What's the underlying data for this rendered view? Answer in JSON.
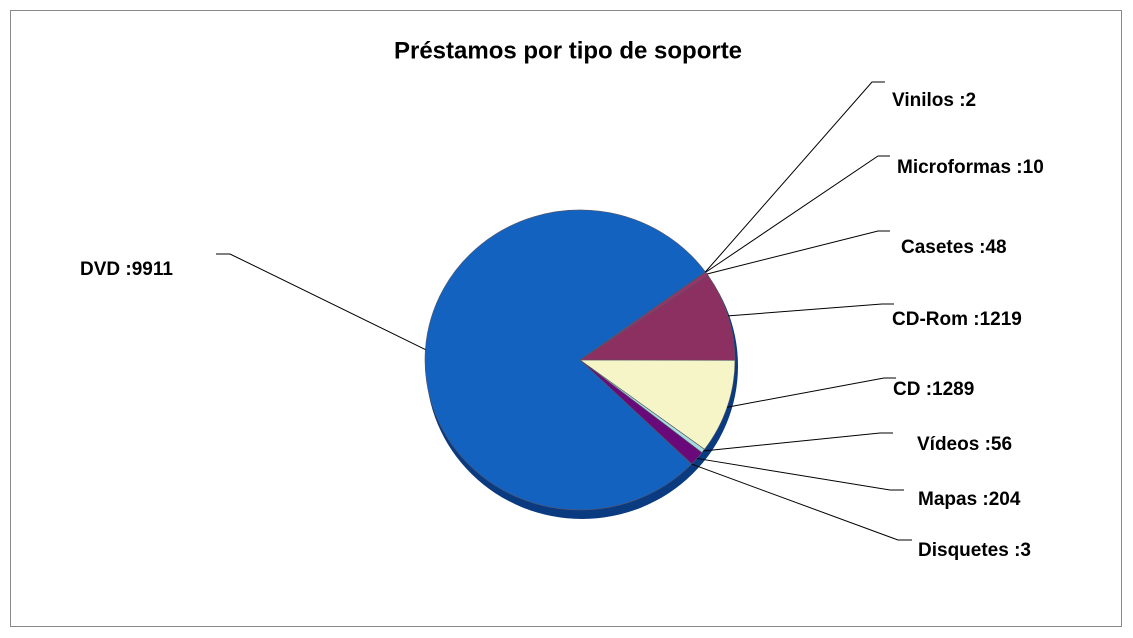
{
  "chart_data": {
    "type": "pie",
    "title": "Préstamos por tipo de soporte",
    "values": [
      2,
      10,
      48,
      1219,
      1289,
      56,
      204,
      3,
      9911
    ],
    "value_labels": [
      "Vinilos :2",
      "Microformas :10",
      "Casetes :48",
      "CD-Rom :1219",
      "CD :1289",
      "Vídeos :56",
      "Mapas :204",
      "Disquetes :3",
      "DVD :9911"
    ],
    "colors": [
      "#b0207a",
      "#7a1a8a",
      "#a0306a",
      "#8b3060",
      "#f5f5c8",
      "#a8dcdc",
      "#6a0a7a",
      "#3a2a9a",
      "#1462c0"
    ]
  }
}
